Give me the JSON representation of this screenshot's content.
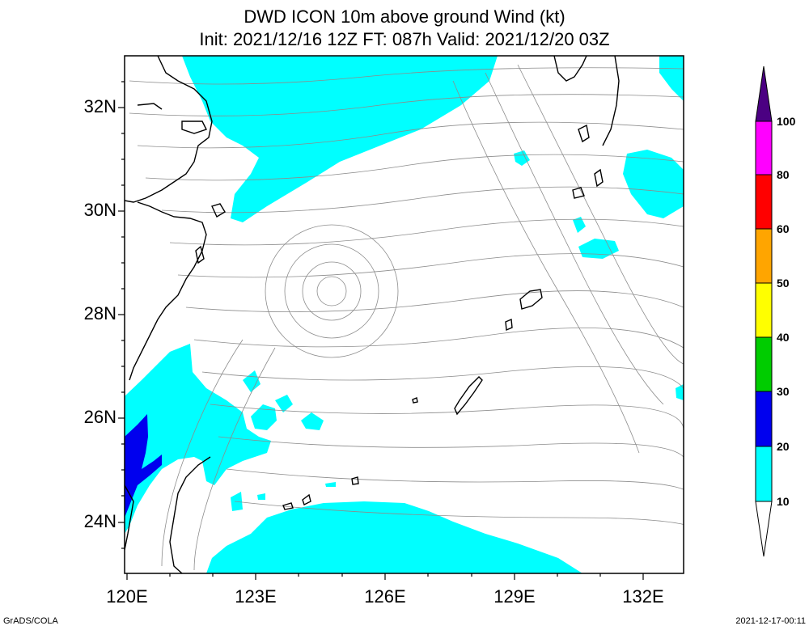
{
  "title_line1": "DWD ICON 10m above ground Wind (kt)",
  "title_line2": "Init: 2021/12/16 12Z  FT: 087h  Valid: 2021/12/20 03Z",
  "lat_labels": [
    "32N",
    "30N",
    "28N",
    "26N",
    "24N"
  ],
  "lon_labels": [
    "120E",
    "123E",
    "126E",
    "129E",
    "132E"
  ],
  "colorbar": {
    "labels": [
      "100",
      "80",
      "60",
      "50",
      "40",
      "30",
      "20",
      "10"
    ],
    "colors": {
      "over": "#4b0082",
      "c80_100": "#ff00ff",
      "c60_80": "#ff0000",
      "c50_60": "#ffa500",
      "c40_50": "#ffff00",
      "c30_40": "#00cc00",
      "c20_30": "#0000ee",
      "c10_20": "#00ffff",
      "under": "#ffffff"
    }
  },
  "footer_left": "GrADS/COLA",
  "footer_right": "2021-12-17-00:11"
}
